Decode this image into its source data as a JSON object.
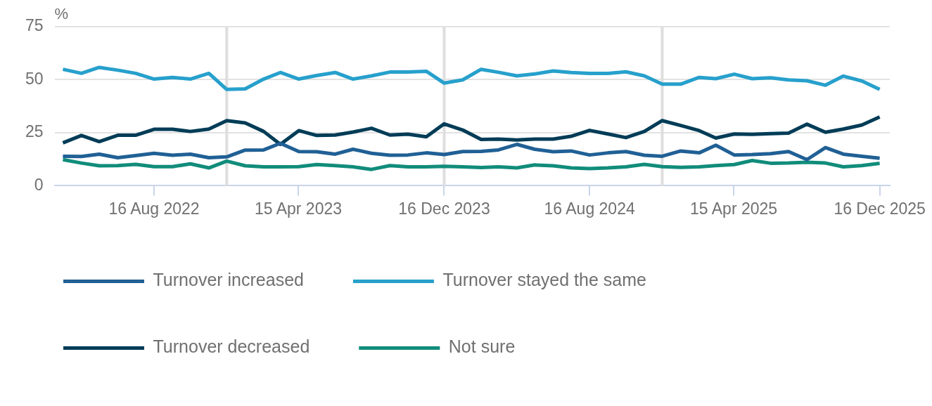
{
  "chart_data": {
    "type": "line",
    "ylabel": "%",
    "x": [
      "2022-03-16",
      "2022-04-16",
      "2022-05-16",
      "2022-06-16",
      "2022-07-16",
      "2022-08-16",
      "2022-09-16",
      "2022-10-16",
      "2022-11-16",
      "2022-12-16",
      "2023-01-16",
      "2023-02-16",
      "2023-03-16",
      "2023-04-16",
      "2023-05-16",
      "2023-06-16",
      "2023-07-16",
      "2023-08-16",
      "2023-09-16",
      "2023-10-16",
      "2023-11-16",
      "2023-12-16",
      "2024-01-16",
      "2024-02-16",
      "2024-03-16",
      "2024-04-16",
      "2024-05-16",
      "2024-06-16",
      "2024-07-16",
      "2024-08-16",
      "2024-09-16",
      "2024-10-16",
      "2024-11-16",
      "2024-12-16",
      "2025-01-16",
      "2025-02-16",
      "2025-03-16",
      "2025-04-16",
      "2025-05-16",
      "2025-06-16",
      "2025-07-16",
      "2025-08-16",
      "2025-09-16",
      "2025-10-16",
      "2025-11-16",
      "2025-12-16"
    ],
    "series": [
      {
        "name": "Turnover increased",
        "color": "#206095",
        "values": [
          13.9,
          13.8,
          14.9,
          13.2,
          14.2,
          15.3,
          14.4,
          14.9,
          13.2,
          13.6,
          16.8,
          16.9,
          20.0,
          16.1,
          16.0,
          14.9,
          17.2,
          15.3,
          14.4,
          14.5,
          15.5,
          14.7,
          16.1,
          16.2,
          16.9,
          19.5,
          17.2,
          16.0,
          16.4,
          14.5,
          15.5,
          16.1,
          14.4,
          13.9,
          16.4,
          15.5,
          19.1,
          14.5,
          14.7,
          15.1,
          16.1,
          12.3,
          18.0,
          14.9,
          13.9,
          13.0
        ]
      },
      {
        "name": "Turnover stayed the same",
        "color": "#27a0cc",
        "values": [
          54.9,
          53.0,
          55.8,
          54.5,
          53.0,
          50.3,
          51.1,
          50.3,
          53.0,
          45.4,
          45.7,
          50.3,
          53.4,
          50.3,
          52.0,
          53.4,
          50.3,
          51.8,
          53.6,
          53.6,
          54.0,
          48.4,
          49.9,
          54.9,
          53.5,
          51.8,
          52.7,
          54.1,
          53.4,
          53.0,
          53.0,
          53.7,
          51.8,
          47.9,
          47.9,
          51.1,
          50.5,
          52.6,
          50.5,
          50.9,
          49.9,
          49.5,
          47.4,
          51.7,
          49.4,
          45.4
        ]
      },
      {
        "name": "Turnover decreased",
        "color": "#003c57",
        "values": [
          20.2,
          23.7,
          20.8,
          23.8,
          23.8,
          26.6,
          26.6,
          25.6,
          26.7,
          30.7,
          29.6,
          25.6,
          19.5,
          26.0,
          23.7,
          23.9,
          25.3,
          27.1,
          23.9,
          24.3,
          23.1,
          29.2,
          26.3,
          21.8,
          22.0,
          21.6,
          22.0,
          22.0,
          23.3,
          26.1,
          24.4,
          22.7,
          25.6,
          30.7,
          28.4,
          26.0,
          22.5,
          24.4,
          24.2,
          24.6,
          24.8,
          29.0,
          25.2,
          26.7,
          28.6,
          32.4
        ]
      },
      {
        "name": "Not sure",
        "color": "#118c7b",
        "values": [
          12.3,
          10.7,
          9.4,
          9.5,
          10.1,
          9.0,
          9.0,
          10.3,
          8.4,
          11.6,
          9.4,
          8.9,
          8.9,
          9.0,
          10.0,
          9.5,
          8.9,
          7.7,
          9.5,
          8.9,
          8.9,
          9.2,
          8.9,
          8.6,
          8.9,
          8.4,
          9.8,
          9.4,
          8.4,
          8.1,
          8.4,
          8.9,
          10.1,
          9.0,
          8.7,
          8.9,
          9.5,
          10.0,
          11.9,
          10.6,
          10.7,
          11.1,
          10.7,
          8.9,
          9.5,
          10.6
        ]
      }
    ],
    "xlim": [
      "2022-03-02",
      "2026-01-02"
    ],
    "xticks": [
      {
        "value": "2022-08-16",
        "label": "16 Aug 2022"
      },
      {
        "value": "2023-04-15",
        "label": "15 Apr 2023"
      },
      {
        "value": "2023-12-16",
        "label": "16 Dec 2023"
      },
      {
        "value": "2024-08-16",
        "label": "16 Aug 2024"
      },
      {
        "value": "2025-04-15",
        "label": "15 Apr 2025"
      },
      {
        "value": "2025-12-16",
        "label": "16 Dec 2025"
      }
    ],
    "ylim": [
      0,
      75
    ],
    "yticks": [
      0,
      25,
      50,
      75
    ],
    "ref_lines": [
      {
        "axis": "x",
        "value": "2022-12-16",
        "color": "#dedede"
      },
      {
        "axis": "x",
        "value": "2023-12-16",
        "color": "#dedede"
      },
      {
        "axis": "x",
        "value": "2024-12-16",
        "color": "#dedede"
      }
    ],
    "grid": "y",
    "legend": "bottom",
    "marker": "none",
    "line_style": "solid"
  }
}
